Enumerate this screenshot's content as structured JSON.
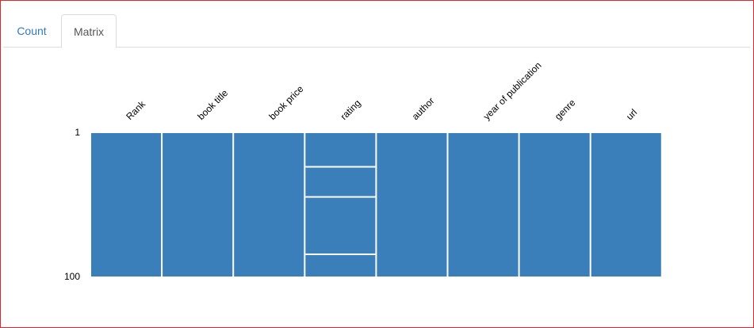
{
  "tabs": [
    {
      "label": "Count",
      "active": false
    },
    {
      "label": "Matrix",
      "active": true
    }
  ],
  "chart_data": {
    "type": "heatmap",
    "columns": [
      "Rank",
      "book title",
      "book price",
      "rating",
      "author",
      "year of publication",
      "genre",
      "url"
    ],
    "row_labels": [
      {
        "row": 1,
        "label": "1"
      },
      {
        "row": 100,
        "label": "100"
      }
    ],
    "row_range": [
      1,
      100
    ],
    "missing_rows": {
      "rating": [
        24,
        45,
        85
      ]
    },
    "colors": {
      "present": "#3a7fba",
      "missing": "#ffffff"
    }
  }
}
